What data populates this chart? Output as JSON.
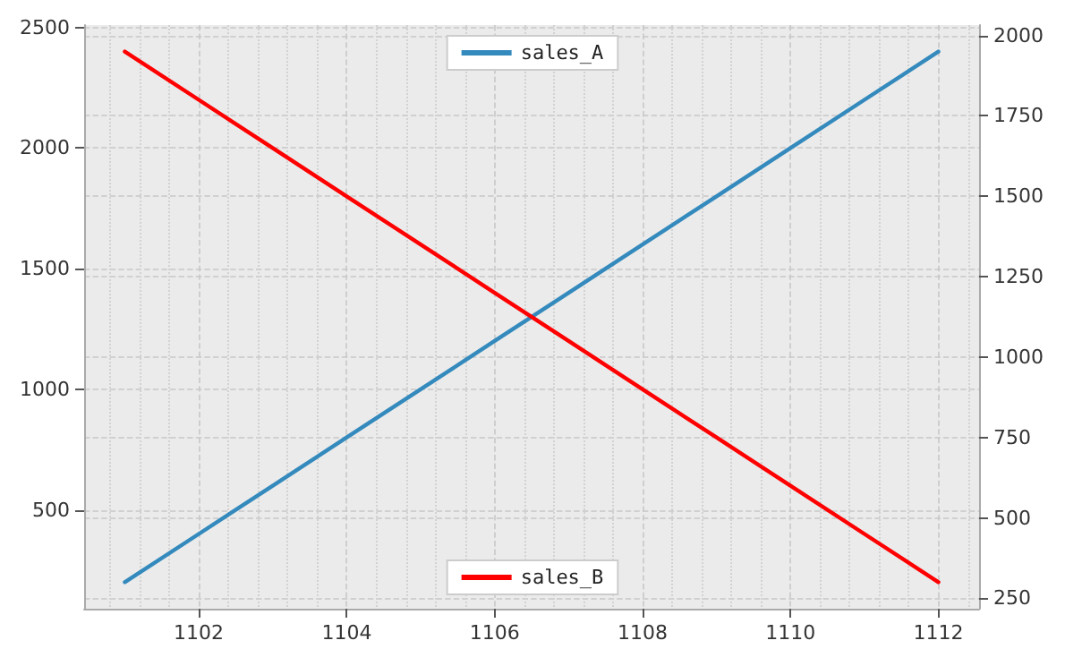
{
  "chart_data": {
    "type": "line",
    "x": [
      1101,
      1102,
      1103,
      1104,
      1105,
      1106,
      1107,
      1108,
      1109,
      1110,
      1111,
      1112
    ],
    "series": [
      {
        "name": "sales_A",
        "color": "#348abd",
        "values": [
          200,
          400,
          600,
          800,
          1000,
          1200,
          1400,
          1600,
          1800,
          2000,
          2200,
          2400
        ]
      },
      {
        "name": "sales_B",
        "color": "#ff0000",
        "axis": "y2",
        "values": [
          1950,
          1800,
          1650,
          1500,
          1350,
          1200,
          1050,
          900,
          750,
          600,
          450,
          300
        ]
      }
    ],
    "xlim": [
      1100.45,
      1112.55
    ],
    "xticks": [
      1102,
      1104,
      1106,
      1108,
      1110,
      1112
    ],
    "ylim": [
      90,
      2510
    ],
    "yticks": [
      500,
      1000,
      1500,
      2000,
      2500
    ],
    "y2lim": [
      217.5,
      2032.5
    ],
    "y2ticks": [
      250,
      500,
      750,
      1000,
      1250,
      1500,
      1750,
      2000
    ],
    "grid": true,
    "legend": [
      "top",
      "bottom"
    ],
    "line_style": "solid"
  }
}
